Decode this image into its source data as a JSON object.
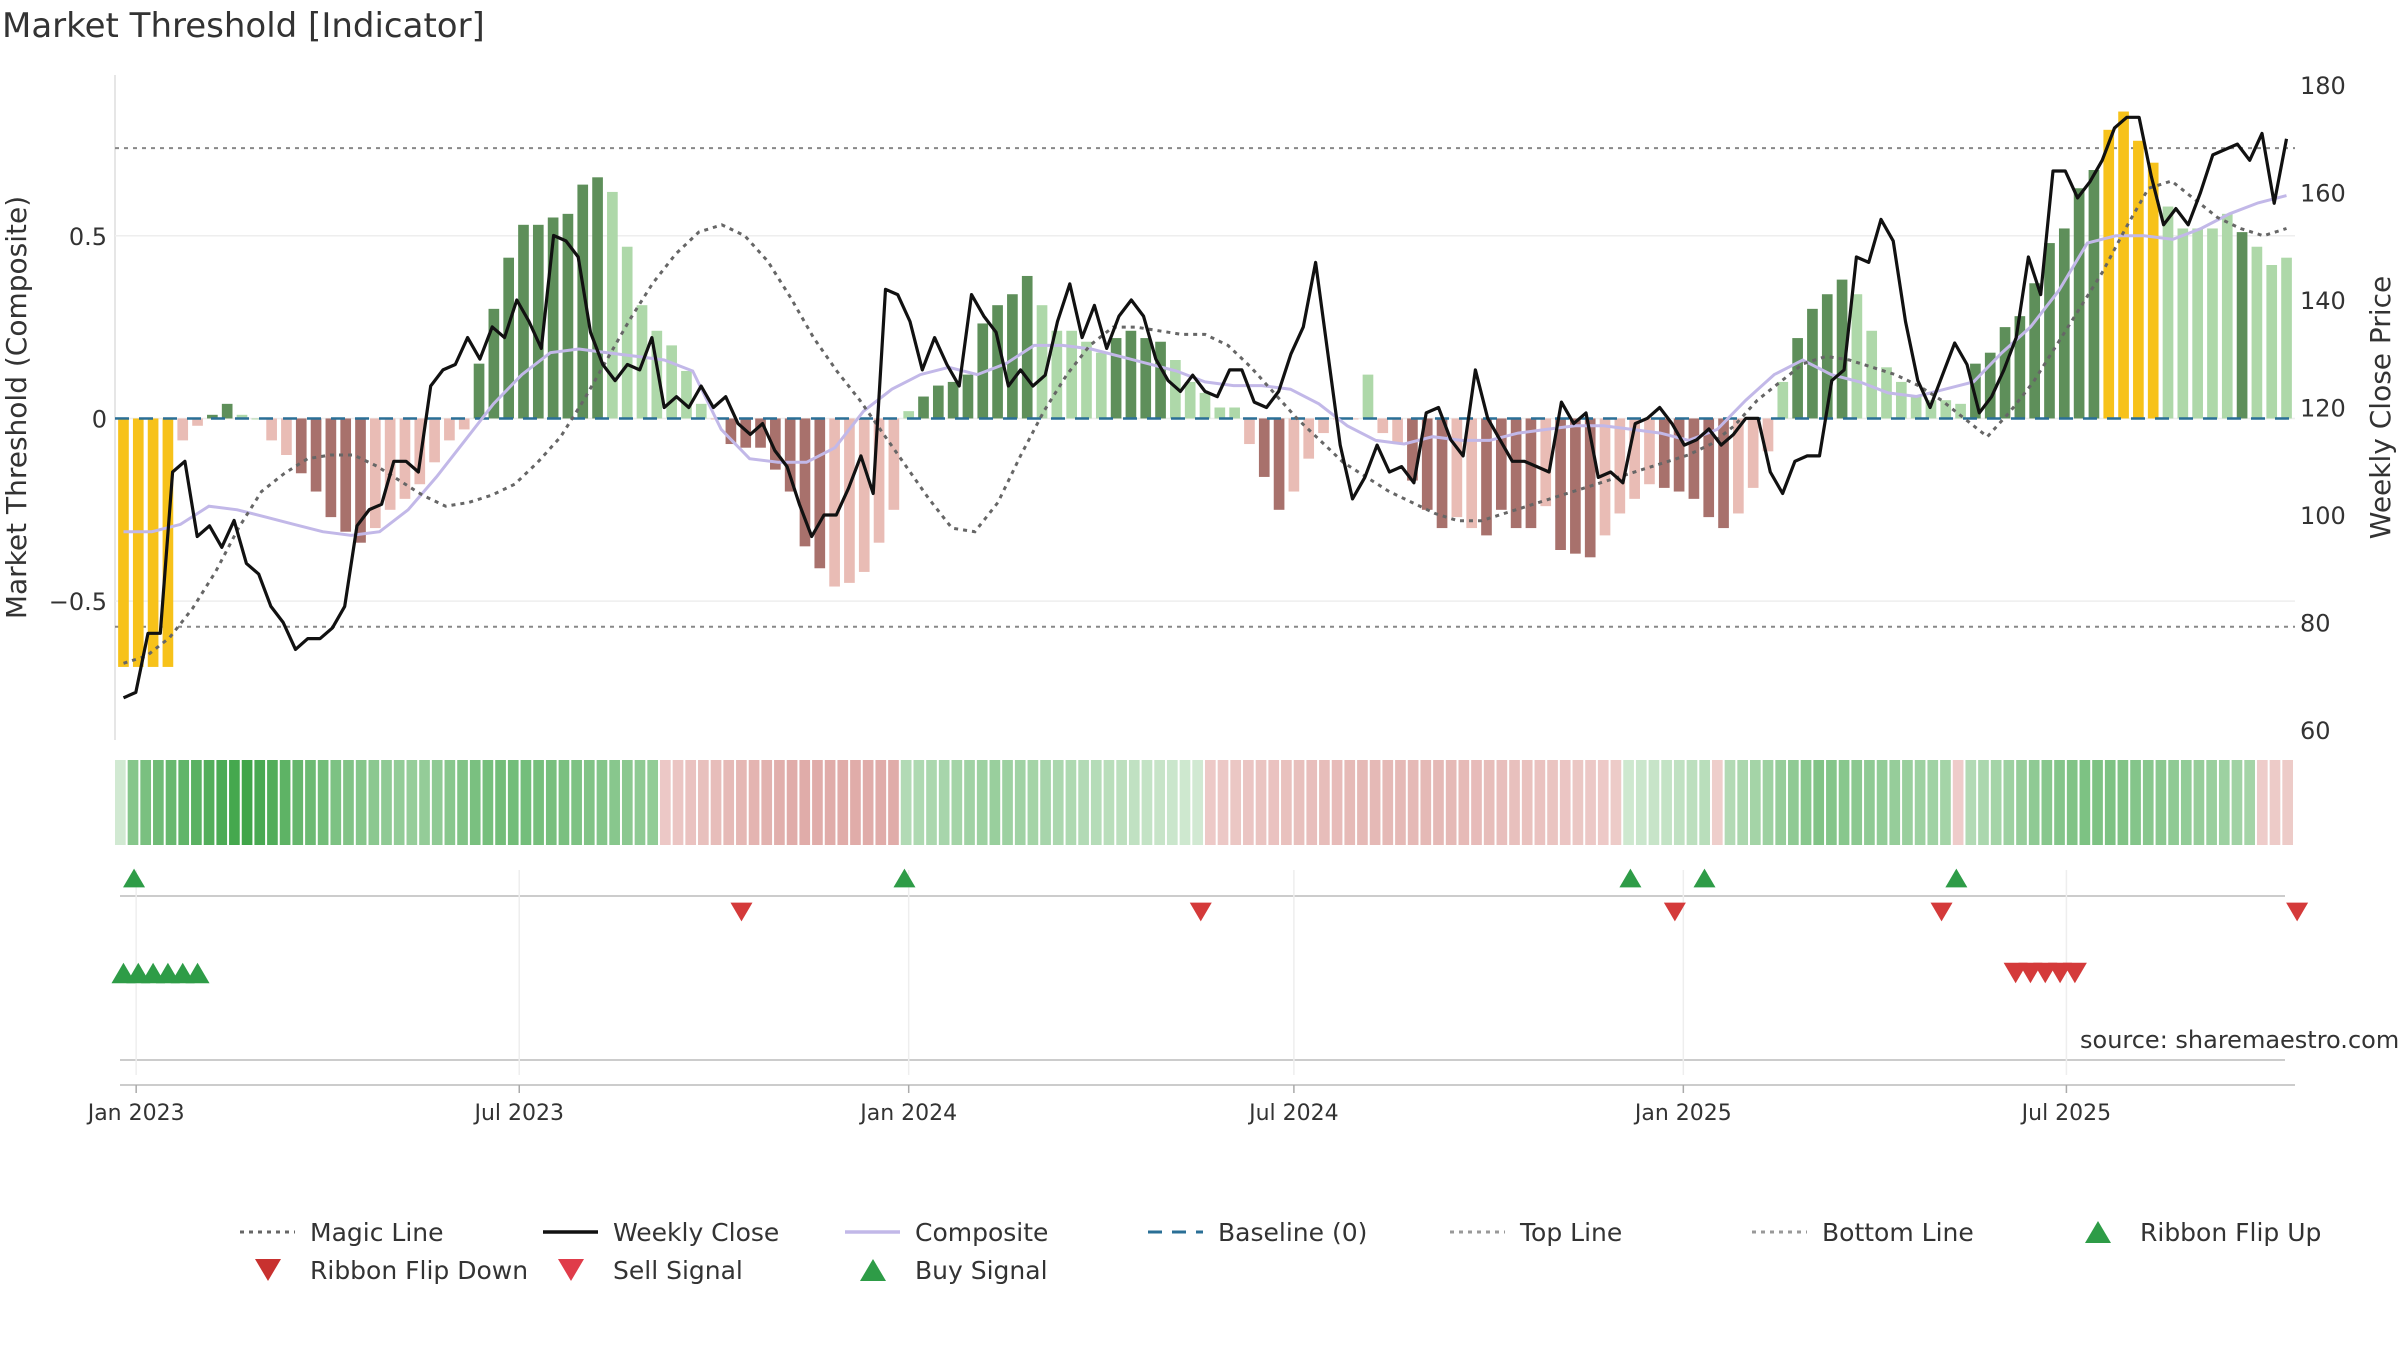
{
  "title": "Market Threshold [Indicator]",
  "source": "source: sharemaestro.com",
  "colors": {
    "bull_strong": "#5e8f5a",
    "bull_light": "#aed8a9",
    "bear_strong": "#a8716c",
    "bear_light": "#e9bcb5",
    "extreme": "#f7c21a",
    "weekly_close": "#111111",
    "magic": "#666666",
    "composite": "#c2b8e8",
    "baseline": "#2a6f96",
    "ref_lines": "#777777",
    "buy": "#2e9c47",
    "sell": "#d43a3a",
    "ribbon_up": "#2e9c47",
    "ribbon_down": "#d43a3a"
  },
  "chart_data": {
    "type": "bar",
    "title": "Market Threshold [Indicator]",
    "y_left_label": "Market Threshold (Composite)",
    "y_right_label": "Weekly Close Price",
    "y_left_ticks": [
      "0.5",
      "0",
      "−0.5"
    ],
    "y_left_tick_values": [
      0.5,
      0,
      -0.5
    ],
    "y_right_ticks": [
      "180",
      "160",
      "140",
      "120",
      "100",
      "80",
      "60"
    ],
    "y_right_tick_values": [
      180,
      160,
      140,
      120,
      100,
      80,
      60
    ],
    "ylim_left": [
      -0.88,
      0.94
    ],
    "ylim_right": [
      60,
      180
    ],
    "x_start": "2022-12-26",
    "x_step_days": 7,
    "x_ticks": [
      "Jan 2023",
      "Jul 2023",
      "Jan 2024",
      "Jul 2024",
      "Jan 2025",
      "Jul 2025"
    ],
    "x_tick_dates": [
      "2023-01-01",
      "2023-07-01",
      "2024-01-01",
      "2024-07-01",
      "2025-01-01",
      "2025-07-01"
    ],
    "top_line": 0.74,
    "bottom_line": -0.57,
    "baseline": 0,
    "bar_values": [
      -0.68,
      -0.68,
      -0.68,
      -0.68,
      -0.06,
      -0.02,
      0.01,
      0.04,
      0.01,
      0,
      -0.06,
      -0.1,
      -0.15,
      -0.2,
      -0.27,
      -0.31,
      -0.34,
      -0.3,
      -0.25,
      -0.22,
      -0.18,
      -0.12,
      -0.06,
      -0.03,
      0.15,
      0.3,
      0.44,
      0.53,
      0.53,
      0.55,
      0.56,
      0.64,
      0.66,
      0.62,
      0.47,
      0.31,
      0.24,
      0.2,
      0.13,
      0.04,
      0,
      -0.07,
      -0.08,
      -0.08,
      -0.14,
      -0.2,
      -0.35,
      -0.41,
      -0.46,
      -0.45,
      -0.42,
      -0.34,
      -0.25,
      0.02,
      0.06,
      0.09,
      0.1,
      0.12,
      0.26,
      0.31,
      0.34,
      0.39,
      0.31,
      0.24,
      0.24,
      0.21,
      0.18,
      0.22,
      0.24,
      0.22,
      0.21,
      0.16,
      0.1,
      0.07,
      0.03,
      0.03,
      -0.07,
      -0.16,
      -0.25,
      -0.2,
      -0.11,
      -0.04,
      0,
      0,
      0.12,
      -0.04,
      -0.07,
      -0.17,
      -0.25,
      -0.3,
      -0.27,
      -0.3,
      -0.32,
      -0.25,
      -0.3,
      -0.3,
      -0.24,
      -0.36,
      -0.37,
      -0.38,
      -0.32,
      -0.26,
      -0.22,
      -0.18,
      -0.19,
      -0.2,
      -0.22,
      -0.27,
      -0.3,
      -0.26,
      -0.19,
      -0.09,
      0.1,
      0.22,
      0.3,
      0.34,
      0.38,
      0.34,
      0.24,
      0.14,
      0.1,
      0.06,
      0.05,
      0.05,
      0.04,
      0.15,
      0.18,
      0.25,
      0.28,
      0.37,
      0.48,
      0.52,
      0.63,
      0.68,
      0.79,
      0.84,
      0.76,
      0.7,
      0.58,
      0.52,
      0.52,
      0.52,
      0.56,
      0.51,
      0.47,
      0.42,
      0.44
    ],
    "bar_series_colors": [
      "extreme",
      "extreme",
      "extreme",
      "extreme",
      "bear_light",
      "bear_light",
      "bull_strong",
      "bull_strong",
      "bull_light",
      "bull_light",
      "bear_light",
      "bear_light",
      "bear_strong",
      "bear_strong",
      "bear_strong",
      "bear_strong",
      "bear_strong",
      "bear_light",
      "bear_light",
      "bear_light",
      "bear_light",
      "bear_light",
      "bear_light",
      "bear_light",
      "bull_strong",
      "bull_strong",
      "bull_strong",
      "bull_strong",
      "bull_strong",
      "bull_strong",
      "bull_strong",
      "bull_strong",
      "bull_strong",
      "bull_light",
      "bull_light",
      "bull_light",
      "bull_light",
      "bull_light",
      "bull_light",
      "bull_light",
      "bear_light",
      "bear_strong",
      "bear_strong",
      "bear_strong",
      "bear_strong",
      "bear_strong",
      "bear_strong",
      "bear_strong",
      "bear_light",
      "bear_light",
      "bear_light",
      "bear_light",
      "bear_light",
      "bull_light",
      "bull_strong",
      "bull_strong",
      "bull_strong",
      "bull_strong",
      "bull_strong",
      "bull_strong",
      "bull_strong",
      "bull_strong",
      "bull_light",
      "bull_light",
      "bull_light",
      "bull_light",
      "bull_light",
      "bull_strong",
      "bull_strong",
      "bull_strong",
      "bull_strong",
      "bull_light",
      "bull_light",
      "bull_light",
      "bull_light",
      "bull_light",
      "bear_light",
      "bear_strong",
      "bear_strong",
      "bear_light",
      "bear_light",
      "bear_light",
      "bear_light",
      "bear_light",
      "bull_light",
      "bear_light",
      "bear_light",
      "bear_strong",
      "bear_strong",
      "bear_strong",
      "bear_light",
      "bear_light",
      "bear_strong",
      "bear_strong",
      "bear_strong",
      "bear_strong",
      "bear_light",
      "bear_strong",
      "bear_strong",
      "bear_strong",
      "bear_light",
      "bear_light",
      "bear_light",
      "bear_light",
      "bear_strong",
      "bear_strong",
      "bear_strong",
      "bear_strong",
      "bear_strong",
      "bear_light",
      "bear_light",
      "bear_light",
      "bull_light",
      "bull_strong",
      "bull_strong",
      "bull_strong",
      "bull_strong",
      "bull_light",
      "bull_light",
      "bull_light",
      "bull_light",
      "bull_light",
      "bull_light",
      "bull_light",
      "bull_light",
      "bull_strong",
      "bull_strong",
      "bull_strong",
      "bull_strong",
      "bull_strong",
      "bull_strong",
      "bull_strong",
      "bull_strong",
      "bull_strong",
      "extreme",
      "extreme",
      "extreme",
      "extreme",
      "bull_light",
      "bull_light",
      "bull_light",
      "bull_light",
      "bull_light",
      "bull_strong",
      "bull_light",
      "bull_light",
      "bull_light",
      "bull_strong"
    ],
    "series": [
      {
        "name": "Weekly Close",
        "axis": "right",
        "values": [
          66,
          67,
          78,
          78,
          108,
          110,
          96,
          98,
          94,
          99,
          91,
          89,
          83,
          80,
          75,
          77,
          77,
          79,
          83,
          98,
          101,
          102,
          110,
          110,
          108,
          124,
          127,
          128,
          133,
          129,
          135,
          133,
          140,
          136,
          131,
          152,
          151,
          148,
          134,
          128,
          125,
          128,
          127,
          133,
          120,
          122,
          120,
          124,
          120,
          122,
          117,
          115,
          117,
          112,
          109,
          102,
          96,
          100,
          100,
          105,
          111,
          104,
          142,
          141,
          136,
          127,
          133,
          128,
          124,
          141,
          137,
          134,
          124,
          127,
          124,
          126,
          136,
          143,
          133,
          139,
          131,
          137,
          140,
          137,
          129,
          125,
          123,
          126,
          123,
          122,
          127,
          127,
          121,
          120,
          123,
          130,
          135,
          147,
          130,
          113,
          103,
          107,
          113,
          108,
          109,
          106,
          119,
          120,
          114,
          111,
          127,
          118,
          114,
          110,
          110,
          109,
          108,
          121,
          117,
          119,
          107,
          108,
          106,
          117,
          118,
          120,
          117,
          113,
          114,
          116,
          113,
          115,
          118,
          118,
          108,
          104,
          110,
          111,
          111,
          125,
          127,
          148,
          147,
          155,
          151,
          136,
          125,
          120,
          126,
          132,
          128,
          119,
          122,
          127,
          133,
          148,
          141,
          164,
          164,
          159,
          162,
          166,
          172,
          174,
          174,
          163,
          154,
          157,
          154,
          160,
          167,
          168,
          169,
          166,
          171,
          158,
          170
        ]
      },
      {
        "name": "Magic Line",
        "axis": "left",
        "values": [
          -0.67,
          -0.65,
          -0.6,
          -0.52,
          -0.42,
          -0.3,
          -0.2,
          -0.15,
          -0.11,
          -0.1,
          -0.1,
          -0.13,
          -0.17,
          -0.21,
          -0.24,
          -0.23,
          -0.21,
          -0.18,
          -0.12,
          -0.05,
          0.05,
          0.16,
          0.27,
          0.37,
          0.45,
          0.51,
          0.53,
          0.5,
          0.43,
          0.33,
          0.22,
          0.13,
          0.05,
          -0.04,
          -0.13,
          -0.22,
          -0.3,
          -0.31,
          -0.23,
          -0.1,
          0.02,
          0.12,
          0.2,
          0.25,
          0.25,
          0.24,
          0.23,
          0.23,
          0.2,
          0.14,
          0.07,
          0,
          -0.06,
          -0.12,
          -0.16,
          -0.2,
          -0.23,
          -0.26,
          -0.28,
          -0.28,
          -0.26,
          -0.24,
          -0.22,
          -0.2,
          -0.18,
          -0.16,
          -0.14,
          -0.12,
          -0.1,
          -0.07,
          -0.02,
          0.05,
          0.1,
          0.15,
          0.17,
          0.16,
          0.14,
          0.12,
          0.09,
          0.05,
          0,
          -0.05,
          0.02,
          0.1,
          0.2,
          0.3,
          0.4,
          0.52,
          0.63,
          0.65,
          0.6,
          0.55,
          0.52,
          0.5,
          0.52
        ]
      },
      {
        "name": "Composite",
        "axis": "left",
        "values": [
          -0.31,
          -0.31,
          -0.29,
          -0.24,
          -0.25,
          -0.27,
          -0.29,
          -0.31,
          -0.32,
          -0.31,
          -0.25,
          -0.16,
          -0.06,
          0.04,
          0.12,
          0.18,
          0.19,
          0.18,
          0.17,
          0.16,
          0.13,
          -0.03,
          -0.11,
          -0.12,
          -0.12,
          -0.08,
          0.02,
          0.08,
          0.12,
          0.14,
          0.12,
          0.15,
          0.2,
          0.2,
          0.19,
          0.17,
          0.15,
          0.13,
          0.1,
          0.09,
          0.09,
          0.08,
          0.04,
          -0.02,
          -0.06,
          -0.07,
          -0.05,
          -0.06,
          -0.06,
          -0.04,
          -0.03,
          -0.02,
          -0.02,
          -0.03,
          -0.04,
          -0.06,
          -0.03,
          0.05,
          0.12,
          0.16,
          0.12,
          0.1,
          0.07,
          0.06,
          0.08,
          0.1,
          0.18,
          0.25,
          0.35,
          0.48,
          0.5,
          0.5,
          0.49,
          0.52,
          0.56,
          0.59,
          0.61
        ]
      }
    ],
    "ribbon_values": [
      0.12,
      0.55,
      0.62,
      0.68,
      0.72,
      0.76,
      0.8,
      0.84,
      0.88,
      0.92,
      0.95,
      0.9,
      0.85,
      0.78,
      0.74,
      0.7,
      0.66,
      0.6,
      0.58,
      0.55,
      0.52,
      0.5,
      0.48,
      0.46,
      0.47,
      0.5,
      0.54,
      0.58,
      0.62,
      0.64,
      0.66,
      0.66,
      0.65,
      0.64,
      0.63,
      0.62,
      0.6,
      0.58,
      0.56,
      0.54,
      0.52,
      0.5,
      0.48,
      -0.2,
      -0.24,
      -0.28,
      -0.32,
      -0.36,
      -0.4,
      -0.44,
      -0.48,
      -0.52,
      -0.56,
      -0.6,
      -0.6,
      -0.6,
      -0.6,
      -0.6,
      -0.6,
      -0.6,
      -0.6,
      -0.6,
      0.3,
      0.32,
      0.34,
      0.36,
      0.38,
      0.4,
      0.42,
      0.44,
      0.42,
      0.4,
      0.38,
      0.36,
      0.34,
      0.32,
      0.3,
      0.28,
      0.26,
      0.24,
      0.22,
      0.2,
      0.18,
      0.16,
      0.14,
      0.12,
      -0.18,
      -0.2,
      -0.22,
      -0.24,
      -0.26,
      -0.28,
      -0.3,
      -0.32,
      -0.34,
      -0.36,
      -0.38,
      -0.4,
      -0.42,
      -0.42,
      -0.42,
      -0.42,
      -0.42,
      -0.42,
      -0.42,
      -0.42,
      -0.4,
      -0.38,
      -0.36,
      -0.34,
      -0.32,
      -0.3,
      -0.28,
      -0.26,
      -0.24,
      -0.22,
      -0.2,
      -0.18,
      -0.16,
      0.14,
      0.16,
      0.18,
      0.2,
      0.22,
      0.24,
      0.26,
      -0.12,
      0.3,
      0.34,
      0.38,
      0.42,
      0.46,
      0.5,
      0.54,
      0.58,
      0.56,
      0.54,
      0.52,
      0.5,
      0.48,
      0.46,
      0.44,
      0.42,
      0.4,
      0.38,
      -0.14,
      0.3,
      0.34,
      0.38,
      0.42,
      0.46,
      0.5,
      0.54,
      0.56,
      0.58,
      0.6,
      0.6,
      0.6,
      0.58,
      0.56,
      0.54,
      0.52,
      0.5,
      0.48,
      0.46,
      0.44,
      0.42,
      0.4,
      0.38,
      -0.14,
      -0.16,
      -0.16
    ],
    "ribbon_flip_up_dates": [
      "2022-12-31",
      "2023-12-30",
      "2024-12-07",
      "2025-01-11",
      "2025-05-10"
    ],
    "ribbon_flip_down_dates": [
      "2023-10-14",
      "2024-05-18",
      "2024-12-28",
      "2025-05-03",
      "2025-10-18"
    ],
    "buy_signal_dates": [
      "2022-12-26",
      "2023-01-02",
      "2023-01-09",
      "2023-01-16",
      "2023-01-23",
      "2023-01-30"
    ],
    "sell_signal_dates": [
      "2025-06-07",
      "2025-06-14",
      "2025-06-21",
      "2025-06-28",
      "2025-07-05"
    ],
    "legend": [
      {
        "label": "Magic Line",
        "kind": "dotted",
        "color": "#666666"
      },
      {
        "label": "Weekly Close",
        "kind": "solid",
        "color": "#111111"
      },
      {
        "label": "Composite",
        "kind": "solid",
        "color": "#c2b8e8"
      },
      {
        "label": "Baseline (0)",
        "kind": "dashed",
        "color": "#2a6f96"
      },
      {
        "label": "Top Line",
        "kind": "dotted",
        "color": "#999999"
      },
      {
        "label": "Bottom Line",
        "kind": "dotted",
        "color": "#999999"
      },
      {
        "label": "Ribbon Flip Up",
        "kind": "tri-up",
        "color": "#2e9c47"
      },
      {
        "label": "Ribbon Flip Down",
        "kind": "tri-down",
        "color": "#c8312f"
      },
      {
        "label": "Sell Signal",
        "kind": "tri-down",
        "color": "#e03c4a"
      },
      {
        "label": "Buy Signal",
        "kind": "tri-up",
        "color": "#2e9c47"
      }
    ],
    "legend_position": "bottom",
    "grid": true
  }
}
